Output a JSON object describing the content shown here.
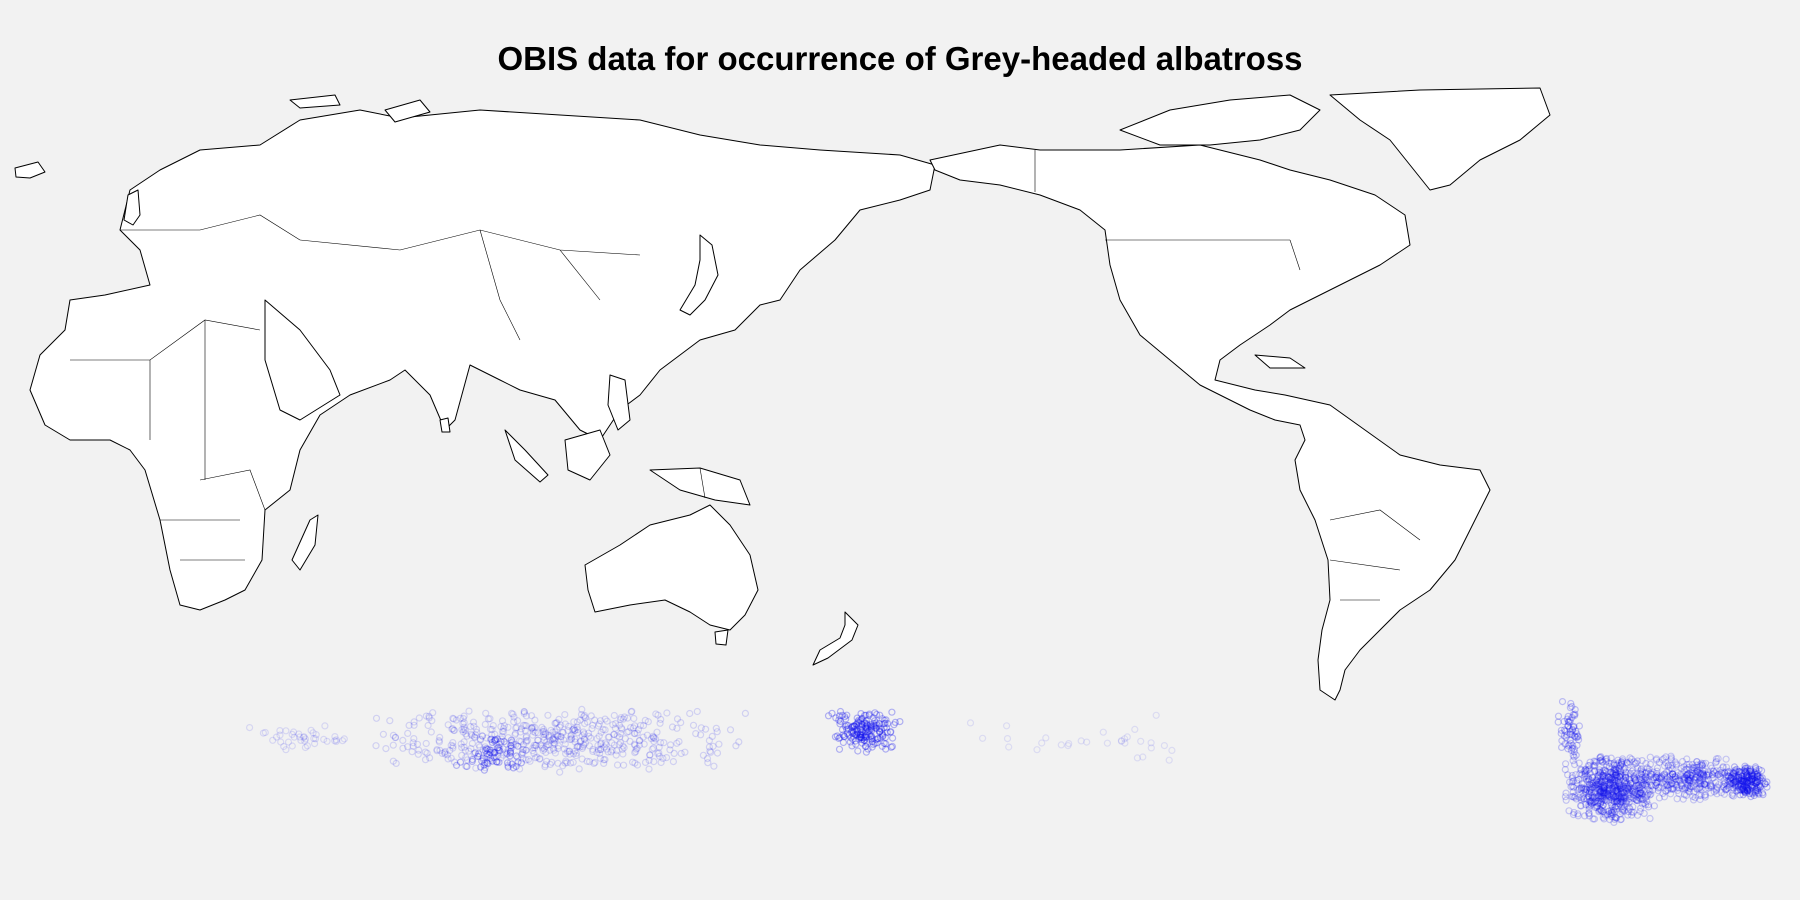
{
  "title": "OBIS data for occurrence of Grey-headed albatross",
  "colors": {
    "background": "#f2f2f2",
    "land": "#ffffff",
    "coastline": "#000000",
    "occurrence_marker": "#1010ee"
  },
  "map": {
    "projection": "equirectangular",
    "central_longitude": 150,
    "lat_range": [
      -65,
      85
    ]
  },
  "occurrence_clusters": [
    {
      "region": "south-atlantic-drake-passage",
      "lon": [
        -75,
        -55
      ],
      "lat": [
        -62,
        -48
      ],
      "count": 650,
      "opacity": 0.22
    },
    {
      "region": "falklands-south-georgia",
      "lon": [
        -60,
        -38
      ],
      "lat": [
        -58,
        -48
      ],
      "count": 320,
      "opacity": 0.2
    },
    {
      "region": "south-georgia-core",
      "lon": [
        -42,
        -33
      ],
      "lat": [
        -57,
        -50
      ],
      "count": 200,
      "opacity": 0.28
    },
    {
      "region": "chile-coast",
      "lon": [
        -76,
        -71
      ],
      "lat": [
        -50,
        -37
      ],
      "count": 60,
      "opacity": 0.25
    },
    {
      "region": "southern-indian-ocean",
      "lon": [
        40,
        120
      ],
      "lat": [
        -52,
        -38
      ],
      "count": 520,
      "opacity": 0.15
    },
    {
      "region": "kerguelen-crozet",
      "lon": [
        60,
        75
      ],
      "lat": [
        -52,
        -44
      ],
      "count": 60,
      "opacity": 0.3
    },
    {
      "region": "tasmania-south-east-australia",
      "lon": [
        135,
        150
      ],
      "lat": [
        -48,
        -39
      ],
      "count": 180,
      "opacity": 0.3
    },
    {
      "region": "south-of-africa",
      "lon": [
        15,
        40
      ],
      "lat": [
        -48,
        -42
      ],
      "count": 40,
      "opacity": 0.12
    },
    {
      "region": "pacific-sparse",
      "lon": [
        160,
        210
      ],
      "lat": [
        -50,
        -40
      ],
      "count": 30,
      "opacity": 0.1
    }
  ]
}
